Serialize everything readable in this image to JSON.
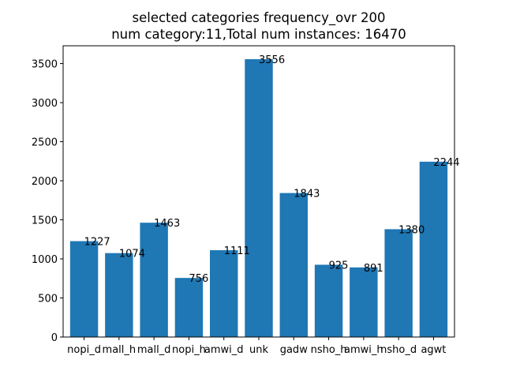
{
  "chart_data": {
    "type": "bar",
    "title": "selected categories frequency_ovr 200",
    "subtitle": "num category:11,Total num instances: 16470",
    "xlabel": "",
    "ylabel": "",
    "ylim": [
      0,
      3727.8
    ],
    "yticks": [
      0,
      500,
      1000,
      1500,
      2000,
      2500,
      3000,
      3500
    ],
    "grid": false,
    "bar_color": "#1f77b4",
    "categories": [
      "nopi_d",
      "mall_h",
      "mall_d",
      "nopi_h",
      "amwi_d",
      "unk",
      "gadw",
      "nsho_h",
      "amwi_h",
      "nsho_d",
      "agwt"
    ],
    "values": [
      1227,
      1074,
      1463,
      756,
      1111,
      3556,
      1843,
      925,
      891,
      1380,
      2244
    ]
  }
}
